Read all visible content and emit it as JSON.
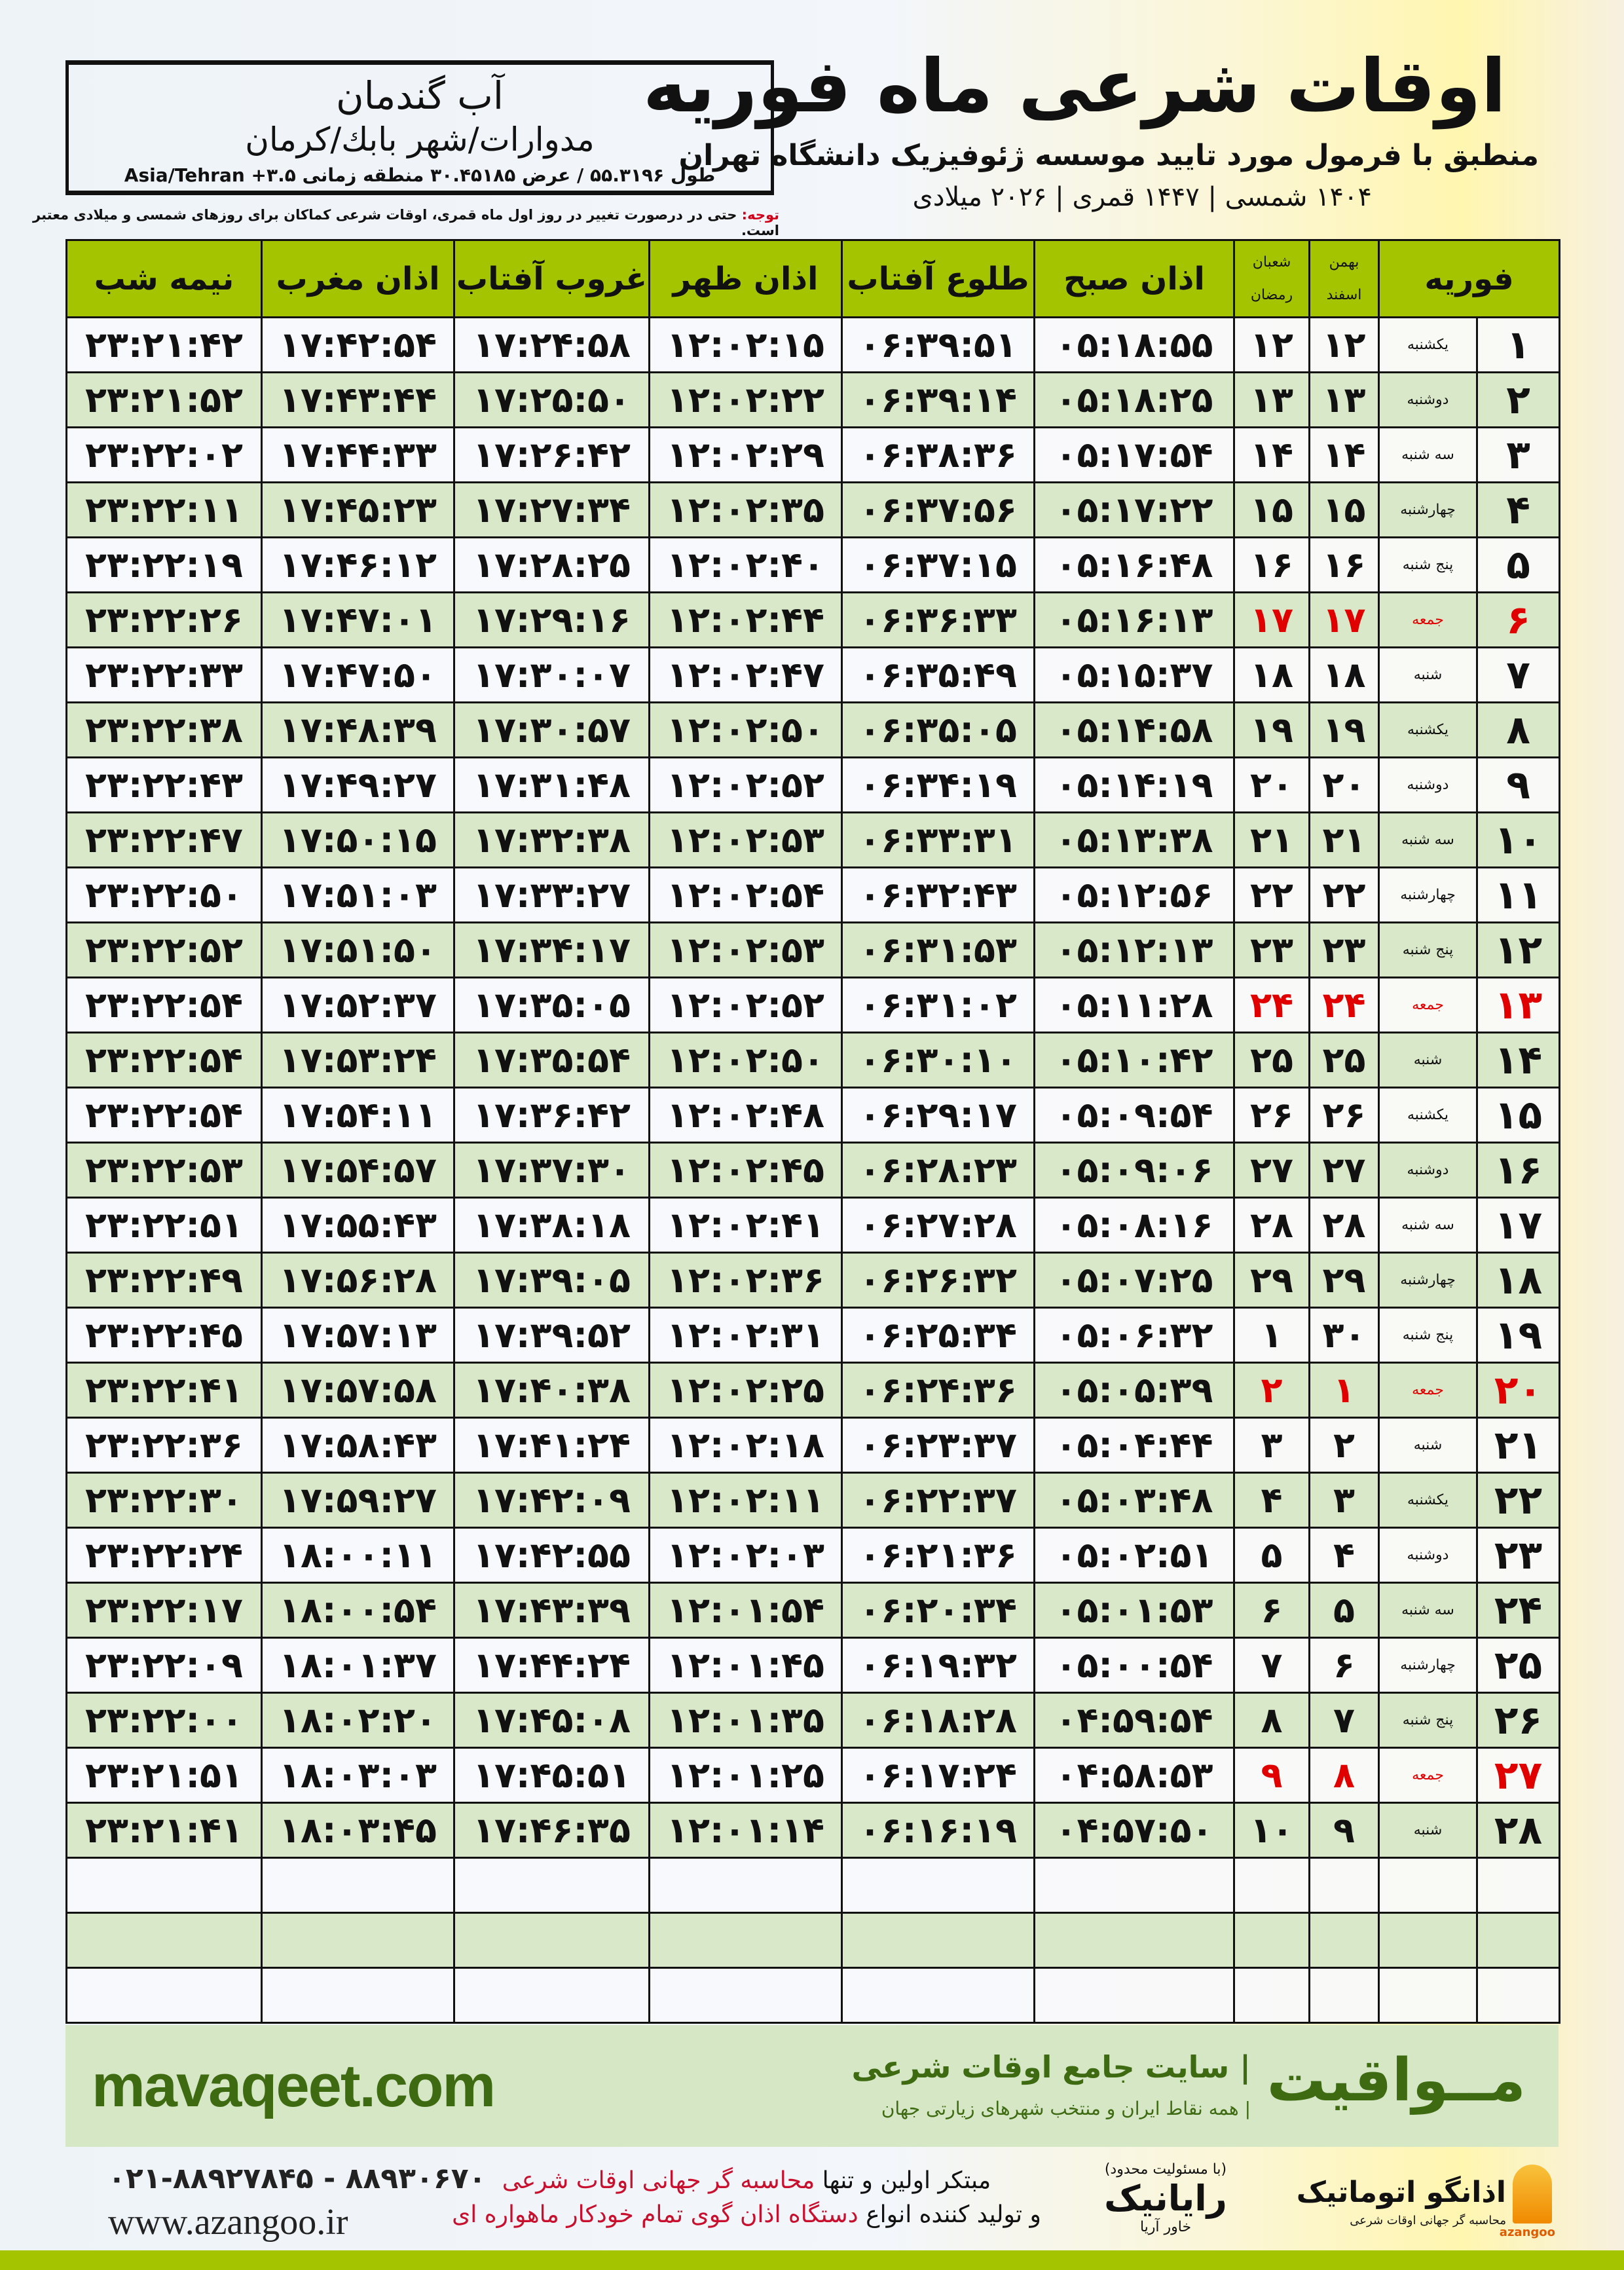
{
  "header": {
    "title": "اوقات شرعی ماه فوریه",
    "subtitle": "منطبق با فرمول مورد تایید موسسه ژئوفیزیک دانشگاه تهران",
    "years": "۱۴۰۴ شمسی | ۱۴۴۷ قمری | ۲۰۲۶ میلادی",
    "location": {
      "city": "آب گندمان",
      "region": "مدوارات/شهر بابك/کرمان",
      "coords": "طول ۵۵.۳۱۹۶ / عرض ۳۰.۴۵۱۸۵ منطقه زمانی ۳.۵+ Asia/Tehran"
    },
    "note_label": "توجه:",
    "note_text": " حتی در درصورت تغییر در روز اول ماه قمری، اوقات شرعی کماکان برای روزهای شمسی و میلادی معتبر است."
  },
  "columns": {
    "month": "فوریه",
    "shamsi_top": "بهمن",
    "shamsi_bottom": "اسفند",
    "hijri_top": "شعبان",
    "hijri_bottom": "رمضان",
    "fajr": "اذان صبح",
    "sunrise": "طلوع آفتاب",
    "dhuhr": "اذان ظهر",
    "sunset": "غروب آفتاب",
    "maghrib": "اذان مغرب",
    "midnight": "نیمه شب"
  },
  "colors": {
    "header_green": "#a4c400",
    "row_green": "#d9e8c8",
    "holiday_red": "#e00000",
    "brand_green": "#3e6b12"
  },
  "rows": [
    {
      "day": "۱",
      "weekday": "یکشنبه",
      "shamsi": "۱۲",
      "hijri": "۱۲",
      "fajr": "۰۵:۱۸:۵۵",
      "sunrise": "۰۶:۳۹:۵۱",
      "dhuhr": "۱۲:۰۲:۱۵",
      "sunset": "۱۷:۲۴:۵۸",
      "maghrib": "۱۷:۴۲:۵۴",
      "midnight": "۲۳:۲۱:۴۲",
      "holiday": false
    },
    {
      "day": "۲",
      "weekday": "دوشنبه",
      "shamsi": "۱۳",
      "hijri": "۱۳",
      "fajr": "۰۵:۱۸:۲۵",
      "sunrise": "۰۶:۳۹:۱۴",
      "dhuhr": "۱۲:۰۲:۲۲",
      "sunset": "۱۷:۲۵:۵۰",
      "maghrib": "۱۷:۴۳:۴۴",
      "midnight": "۲۳:۲۱:۵۲",
      "holiday": false
    },
    {
      "day": "۳",
      "weekday": "سه شنبه",
      "shamsi": "۱۴",
      "hijri": "۱۴",
      "fajr": "۰۵:۱۷:۵۴",
      "sunrise": "۰۶:۳۸:۳۶",
      "dhuhr": "۱۲:۰۲:۲۹",
      "sunset": "۱۷:۲۶:۴۲",
      "maghrib": "۱۷:۴۴:۳۳",
      "midnight": "۲۳:۲۲:۰۲",
      "holiday": false
    },
    {
      "day": "۴",
      "weekday": "چهارشنبه",
      "shamsi": "۱۵",
      "hijri": "۱۵",
      "fajr": "۰۵:۱۷:۲۲",
      "sunrise": "۰۶:۳۷:۵۶",
      "dhuhr": "۱۲:۰۲:۳۵",
      "sunset": "۱۷:۲۷:۳۴",
      "maghrib": "۱۷:۴۵:۲۳",
      "midnight": "۲۳:۲۲:۱۱",
      "holiday": false
    },
    {
      "day": "۵",
      "weekday": "پنج شنبه",
      "shamsi": "۱۶",
      "hijri": "۱۶",
      "fajr": "۰۵:۱۶:۴۸",
      "sunrise": "۰۶:۳۷:۱۵",
      "dhuhr": "۱۲:۰۲:۴۰",
      "sunset": "۱۷:۲۸:۲۵",
      "maghrib": "۱۷:۴۶:۱۲",
      "midnight": "۲۳:۲۲:۱۹",
      "holiday": false
    },
    {
      "day": "۶",
      "weekday": "جمعه",
      "shamsi": "۱۷",
      "hijri": "۱۷",
      "fajr": "۰۵:۱۶:۱۳",
      "sunrise": "۰۶:۳۶:۳۳",
      "dhuhr": "۱۲:۰۲:۴۴",
      "sunset": "۱۷:۲۹:۱۶",
      "maghrib": "۱۷:۴۷:۰۱",
      "midnight": "۲۳:۲۲:۲۶",
      "holiday": true
    },
    {
      "day": "۷",
      "weekday": "شنبه",
      "shamsi": "۱۸",
      "hijri": "۱۸",
      "fajr": "۰۵:۱۵:۳۷",
      "sunrise": "۰۶:۳۵:۴۹",
      "dhuhr": "۱۲:۰۲:۴۷",
      "sunset": "۱۷:۳۰:۰۷",
      "maghrib": "۱۷:۴۷:۵۰",
      "midnight": "۲۳:۲۲:۳۳",
      "holiday": false
    },
    {
      "day": "۸",
      "weekday": "یکشنبه",
      "shamsi": "۱۹",
      "hijri": "۱۹",
      "fajr": "۰۵:۱۴:۵۸",
      "sunrise": "۰۶:۳۵:۰۵",
      "dhuhr": "۱۲:۰۲:۵۰",
      "sunset": "۱۷:۳۰:۵۷",
      "maghrib": "۱۷:۴۸:۳۹",
      "midnight": "۲۳:۲۲:۳۸",
      "holiday": false
    },
    {
      "day": "۹",
      "weekday": "دوشنبه",
      "shamsi": "۲۰",
      "hijri": "۲۰",
      "fajr": "۰۵:۱۴:۱۹",
      "sunrise": "۰۶:۳۴:۱۹",
      "dhuhr": "۱۲:۰۲:۵۲",
      "sunset": "۱۷:۳۱:۴۸",
      "maghrib": "۱۷:۴۹:۲۷",
      "midnight": "۲۳:۲۲:۴۳",
      "holiday": false
    },
    {
      "day": "۱۰",
      "weekday": "سه شنبه",
      "shamsi": "۲۱",
      "hijri": "۲۱",
      "fajr": "۰۵:۱۳:۳۸",
      "sunrise": "۰۶:۳۳:۳۱",
      "dhuhr": "۱۲:۰۲:۵۳",
      "sunset": "۱۷:۳۲:۳۸",
      "maghrib": "۱۷:۵۰:۱۵",
      "midnight": "۲۳:۲۲:۴۷",
      "holiday": false
    },
    {
      "day": "۱۱",
      "weekday": "چهارشنبه",
      "shamsi": "۲۲",
      "hijri": "۲۲",
      "fajr": "۰۵:۱۲:۵۶",
      "sunrise": "۰۶:۳۲:۴۳",
      "dhuhr": "۱۲:۰۲:۵۴",
      "sunset": "۱۷:۳۳:۲۷",
      "maghrib": "۱۷:۵۱:۰۳",
      "midnight": "۲۳:۲۲:۵۰",
      "holiday": false
    },
    {
      "day": "۱۲",
      "weekday": "پنج شنبه",
      "shamsi": "۲۳",
      "hijri": "۲۳",
      "fajr": "۰۵:۱۲:۱۳",
      "sunrise": "۰۶:۳۱:۵۳",
      "dhuhr": "۱۲:۰۲:۵۳",
      "sunset": "۱۷:۳۴:۱۷",
      "maghrib": "۱۷:۵۱:۵۰",
      "midnight": "۲۳:۲۲:۵۲",
      "holiday": false
    },
    {
      "day": "۱۳",
      "weekday": "جمعه",
      "shamsi": "۲۴",
      "hijri": "۲۴",
      "fajr": "۰۵:۱۱:۲۸",
      "sunrise": "۰۶:۳۱:۰۲",
      "dhuhr": "۱۲:۰۲:۵۲",
      "sunset": "۱۷:۳۵:۰۵",
      "maghrib": "۱۷:۵۲:۳۷",
      "midnight": "۲۳:۲۲:۵۴",
      "holiday": true
    },
    {
      "day": "۱۴",
      "weekday": "شنبه",
      "shamsi": "۲۵",
      "hijri": "۲۵",
      "fajr": "۰۵:۱۰:۴۲",
      "sunrise": "۰۶:۳۰:۱۰",
      "dhuhr": "۱۲:۰۲:۵۰",
      "sunset": "۱۷:۳۵:۵۴",
      "maghrib": "۱۷:۵۳:۲۴",
      "midnight": "۲۳:۲۲:۵۴",
      "holiday": false
    },
    {
      "day": "۱۵",
      "weekday": "یکشنبه",
      "shamsi": "۲۶",
      "hijri": "۲۶",
      "fajr": "۰۵:۰۹:۵۴",
      "sunrise": "۰۶:۲۹:۱۷",
      "dhuhr": "۱۲:۰۲:۴۸",
      "sunset": "۱۷:۳۶:۴۲",
      "maghrib": "۱۷:۵۴:۱۱",
      "midnight": "۲۳:۲۲:۵۴",
      "holiday": false
    },
    {
      "day": "۱۶",
      "weekday": "دوشنبه",
      "shamsi": "۲۷",
      "hijri": "۲۷",
      "fajr": "۰۵:۰۹:۰۶",
      "sunrise": "۰۶:۲۸:۲۳",
      "dhuhr": "۱۲:۰۲:۴۵",
      "sunset": "۱۷:۳۷:۳۰",
      "maghrib": "۱۷:۵۴:۵۷",
      "midnight": "۲۳:۲۲:۵۳",
      "holiday": false
    },
    {
      "day": "۱۷",
      "weekday": "سه شنبه",
      "shamsi": "۲۸",
      "hijri": "۲۸",
      "fajr": "۰۵:۰۸:۱۶",
      "sunrise": "۰۶:۲۷:۲۸",
      "dhuhr": "۱۲:۰۲:۴۱",
      "sunset": "۱۷:۳۸:۱۸",
      "maghrib": "۱۷:۵۵:۴۳",
      "midnight": "۲۳:۲۲:۵۱",
      "holiday": false
    },
    {
      "day": "۱۸",
      "weekday": "چهارشنبه",
      "shamsi": "۲۹",
      "hijri": "۲۹",
      "fajr": "۰۵:۰۷:۲۵",
      "sunrise": "۰۶:۲۶:۳۲",
      "dhuhr": "۱۲:۰۲:۳۶",
      "sunset": "۱۷:۳۹:۰۵",
      "maghrib": "۱۷:۵۶:۲۸",
      "midnight": "۲۳:۲۲:۴۹",
      "holiday": false
    },
    {
      "day": "۱۹",
      "weekday": "پنج شنبه",
      "shamsi": "۳۰",
      "hijri": "۱",
      "fajr": "۰۵:۰۶:۳۲",
      "sunrise": "۰۶:۲۵:۳۴",
      "dhuhr": "۱۲:۰۲:۳۱",
      "sunset": "۱۷:۳۹:۵۲",
      "maghrib": "۱۷:۵۷:۱۳",
      "midnight": "۲۳:۲۲:۴۵",
      "holiday": false
    },
    {
      "day": "۲۰",
      "weekday": "جمعه",
      "shamsi": "۱",
      "hijri": "۲",
      "fajr": "۰۵:۰۵:۳۹",
      "sunrise": "۰۶:۲۴:۳۶",
      "dhuhr": "۱۲:۰۲:۲۵",
      "sunset": "۱۷:۴۰:۳۸",
      "maghrib": "۱۷:۵۷:۵۸",
      "midnight": "۲۳:۲۲:۴۱",
      "holiday": true
    },
    {
      "day": "۲۱",
      "weekday": "شنبه",
      "shamsi": "۲",
      "hijri": "۳",
      "fajr": "۰۵:۰۴:۴۴",
      "sunrise": "۰۶:۲۳:۳۷",
      "dhuhr": "۱۲:۰۲:۱۸",
      "sunset": "۱۷:۴۱:۲۴",
      "maghrib": "۱۷:۵۸:۴۳",
      "midnight": "۲۳:۲۲:۳۶",
      "holiday": false
    },
    {
      "day": "۲۲",
      "weekday": "یکشنبه",
      "shamsi": "۳",
      "hijri": "۴",
      "fajr": "۰۵:۰۳:۴۸",
      "sunrise": "۰۶:۲۲:۳۷",
      "dhuhr": "۱۲:۰۲:۱۱",
      "sunset": "۱۷:۴۲:۰۹",
      "maghrib": "۱۷:۵۹:۲۷",
      "midnight": "۲۳:۲۲:۳۰",
      "holiday": false
    },
    {
      "day": "۲۳",
      "weekday": "دوشنبه",
      "shamsi": "۴",
      "hijri": "۵",
      "fajr": "۰۵:۰۲:۵۱",
      "sunrise": "۰۶:۲۱:۳۶",
      "dhuhr": "۱۲:۰۲:۰۳",
      "sunset": "۱۷:۴۲:۵۵",
      "maghrib": "۱۸:۰۰:۱۱",
      "midnight": "۲۳:۲۲:۲۴",
      "holiday": false
    },
    {
      "day": "۲۴",
      "weekday": "سه شنبه",
      "shamsi": "۵",
      "hijri": "۶",
      "fajr": "۰۵:۰۱:۵۳",
      "sunrise": "۰۶:۲۰:۳۴",
      "dhuhr": "۱۲:۰۱:۵۴",
      "sunset": "۱۷:۴۳:۳۹",
      "maghrib": "۱۸:۰۰:۵۴",
      "midnight": "۲۳:۲۲:۱۷",
      "holiday": false
    },
    {
      "day": "۲۵",
      "weekday": "چهارشنبه",
      "shamsi": "۶",
      "hijri": "۷",
      "fajr": "۰۵:۰۰:۵۴",
      "sunrise": "۰۶:۱۹:۳۲",
      "dhuhr": "۱۲:۰۱:۴۵",
      "sunset": "۱۷:۴۴:۲۴",
      "maghrib": "۱۸:۰۱:۳۷",
      "midnight": "۲۳:۲۲:۰۹",
      "holiday": false
    },
    {
      "day": "۲۶",
      "weekday": "پنج شنبه",
      "shamsi": "۷",
      "hijri": "۸",
      "fajr": "۰۴:۵۹:۵۴",
      "sunrise": "۰۶:۱۸:۲۸",
      "dhuhr": "۱۲:۰۱:۳۵",
      "sunset": "۱۷:۴۵:۰۸",
      "maghrib": "۱۸:۰۲:۲۰",
      "midnight": "۲۳:۲۲:۰۰",
      "holiday": false
    },
    {
      "day": "۲۷",
      "weekday": "جمعه",
      "shamsi": "۸",
      "hijri": "۹",
      "fajr": "۰۴:۵۸:۵۳",
      "sunrise": "۰۶:۱۷:۲۴",
      "dhuhr": "۱۲:۰۱:۲۵",
      "sunset": "۱۷:۴۵:۵۱",
      "maghrib": "۱۸:۰۳:۰۳",
      "midnight": "۲۳:۲۱:۵۱",
      "holiday": true
    },
    {
      "day": "۲۸",
      "weekday": "شنبه",
      "shamsi": "۹",
      "hijri": "۱۰",
      "fajr": "۰۴:۵۷:۵۰",
      "sunrise": "۰۶:۱۶:۱۹",
      "dhuhr": "۱۲:۰۱:۱۴",
      "sunset": "۱۷:۴۶:۳۵",
      "maghrib": "۱۸:۰۳:۴۵",
      "midnight": "۲۳:۲۱:۴۱",
      "holiday": false
    }
  ],
  "footer": {
    "brand": "مــواقیت",
    "slogan": "| سایت جامع اوقات شرعی",
    "slogan_sub": "| همه نقاط ایران و منتخب شهرهای زیارتی جهان",
    "url": "mavaqeet.com",
    "phone": "۰۲۱-۸۸۹۲۷۸۴۵ - ۸۸۹۳۰۶۷۰",
    "website": "www.azangoo.ir",
    "promo_1a": "مبتکر اولین و تنها ",
    "promo_1b": "محاسبه گر جهانی اوقات شرعی",
    "promo_2a": "و تولید کننده انواع ",
    "promo_2b": "دستگاه اذان گوی تمام خودکار ماهواره ای",
    "rayanik_small": "(با مسئولیت محدود)",
    "rayanik": "رایانیک",
    "rayanik_sub": "خاور آریا",
    "azangoo": "اذانگو اتوماتیک",
    "azangoo_sub": "محاسبه گر جهانی اوقات شرعی",
    "azangoo_en": "azangoo"
  }
}
